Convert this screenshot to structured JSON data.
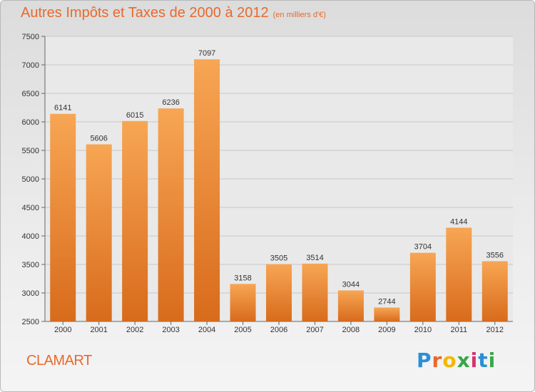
{
  "title": "Autres Impôts et Taxes de 2000 à 2012",
  "subtitle": "(en milliers d'€)",
  "city": "CLAMART",
  "logo": {
    "letters": [
      "P",
      "r",
      "o",
      "x",
      "i",
      "t",
      "i"
    ],
    "colors": [
      "#2a8fd6",
      "#e8692b",
      "#f2b705",
      "#3aa648",
      "#d6336c",
      "#2a8fd6",
      "#3aa648"
    ]
  },
  "colors": {
    "bar_top": "#f7a654",
    "bar_bottom": "#d86b1c",
    "accent": "#e8692b"
  },
  "chart_data": {
    "type": "bar",
    "categories": [
      "2000",
      "2001",
      "2002",
      "2003",
      "2004",
      "2005",
      "2006",
      "2007",
      "2008",
      "2009",
      "2010",
      "2011",
      "2012"
    ],
    "values": [
      6141,
      5606,
      6015,
      6236,
      7097,
      3158,
      3505,
      3514,
      3044,
      2744,
      3704,
      4144,
      3556
    ],
    "ylim": [
      2500,
      7500
    ],
    "yticks": [
      2500,
      3000,
      3500,
      4000,
      4500,
      5000,
      5500,
      6000,
      6500,
      7000,
      7500
    ],
    "grid": true
  }
}
